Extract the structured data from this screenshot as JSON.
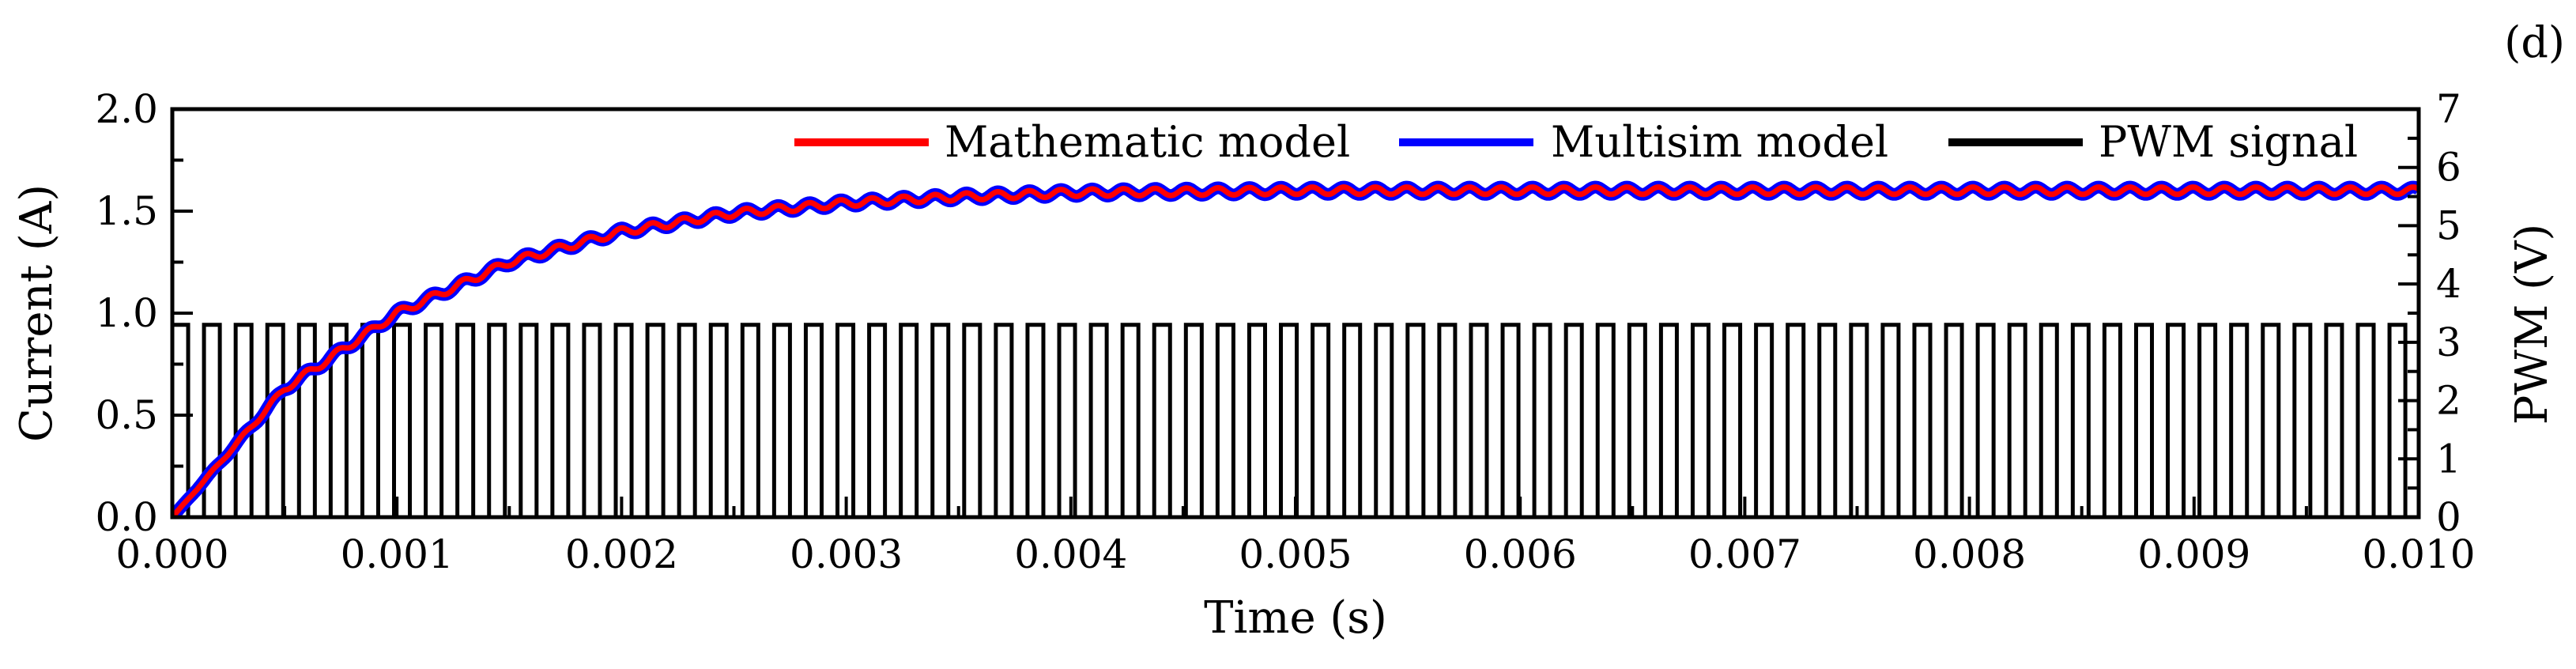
{
  "panel_label": "(d)",
  "chart_data": {
    "type": "line",
    "xlabel": "Time (s)",
    "ylabel_left": "Current (A)",
    "ylabel_right": "PWM (V)",
    "xlim": [
      0.0,
      0.01
    ],
    "ylim_left": [
      0.0,
      2.0
    ],
    "ylim_right": [
      0,
      7
    ],
    "x_ticks": [
      "0.000",
      "0.001",
      "0.002",
      "0.003",
      "0.004",
      "0.005",
      "0.006",
      "0.007",
      "0.008",
      "0.009",
      "0.010"
    ],
    "y_ticks_left": [
      "0.0",
      "0.5",
      "1.0",
      "1.5",
      "2.0"
    ],
    "y_ticks_right": [
      "0",
      "1",
      "2",
      "3",
      "4",
      "5",
      "6",
      "7"
    ],
    "grid": false,
    "legend_placement": "top",
    "series": [
      {
        "name": "Mathematic model",
        "color": "#ff0000",
        "axis": "left",
        "x": [
          0.0,
          0.0005,
          0.001,
          0.0015,
          0.002,
          0.0025,
          0.003,
          0.0035,
          0.004,
          0.005,
          0.006,
          0.007,
          0.008,
          0.009,
          0.01
        ],
        "y": [
          0.0,
          0.63,
          1.0,
          1.25,
          1.4,
          1.49,
          1.54,
          1.57,
          1.59,
          1.6,
          1.6,
          1.6,
          1.6,
          1.6,
          1.6
        ],
        "ripple_amplitude": 0.018,
        "ripple_period": 0.00014
      },
      {
        "name": "Multisim model",
        "color": "#0000ff",
        "axis": "left",
        "x": [
          0.0,
          0.0005,
          0.001,
          0.0015,
          0.002,
          0.0025,
          0.003,
          0.0035,
          0.004,
          0.005,
          0.006,
          0.007,
          0.008,
          0.009,
          0.01
        ],
        "y": [
          0.0,
          0.63,
          1.0,
          1.25,
          1.4,
          1.49,
          1.54,
          1.57,
          1.59,
          1.6,
          1.6,
          1.6,
          1.6,
          1.6,
          1.6
        ],
        "ripple_amplitude": 0.018,
        "ripple_period": 0.00014
      },
      {
        "name": "PWM signal",
        "color": "#000000",
        "axis": "right",
        "waveform": "square",
        "high": 3.3,
        "low": 0,
        "period": 0.000141,
        "duty": 0.5
      }
    ]
  }
}
